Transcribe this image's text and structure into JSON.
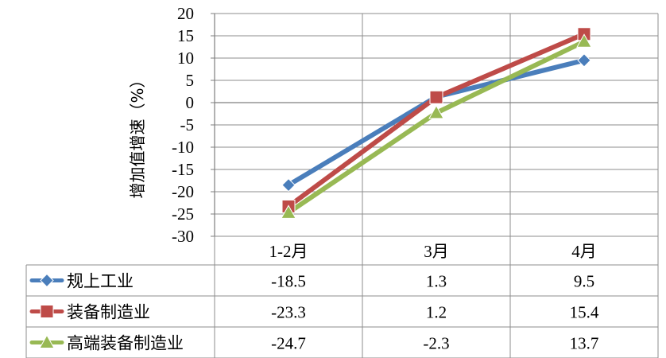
{
  "chart_data": {
    "type": "line",
    "title": "",
    "xlabel": "",
    "ylabel": "增加值增速（%）",
    "categories": [
      "1-2月",
      "3月",
      "4月"
    ],
    "ylim": [
      -30,
      20
    ],
    "yticks": [
      20,
      15,
      10,
      5,
      0,
      -5,
      -10,
      -15,
      -20,
      -25,
      -30
    ],
    "grid": true,
    "legend": "data-table",
    "series": [
      {
        "name": "规上工业",
        "values": [
          -18.5,
          1.3,
          9.5
        ],
        "labels": [
          "-18.5",
          "1.3",
          "9.5"
        ],
        "color": "#4a7ebb",
        "marker": "diamond"
      },
      {
        "name": "装备制造业",
        "values": [
          -23.3,
          1.2,
          15.4
        ],
        "labels": [
          "-23.3",
          "1.2",
          "15.4"
        ],
        "color": "#be4b48",
        "marker": "square"
      },
      {
        "name": "高端装备制造业",
        "values": [
          -24.7,
          -2.3,
          13.7
        ],
        "labels": [
          "-24.7",
          "-2.3",
          "13.7"
        ],
        "color": "#98b954",
        "marker": "triangle"
      }
    ]
  }
}
